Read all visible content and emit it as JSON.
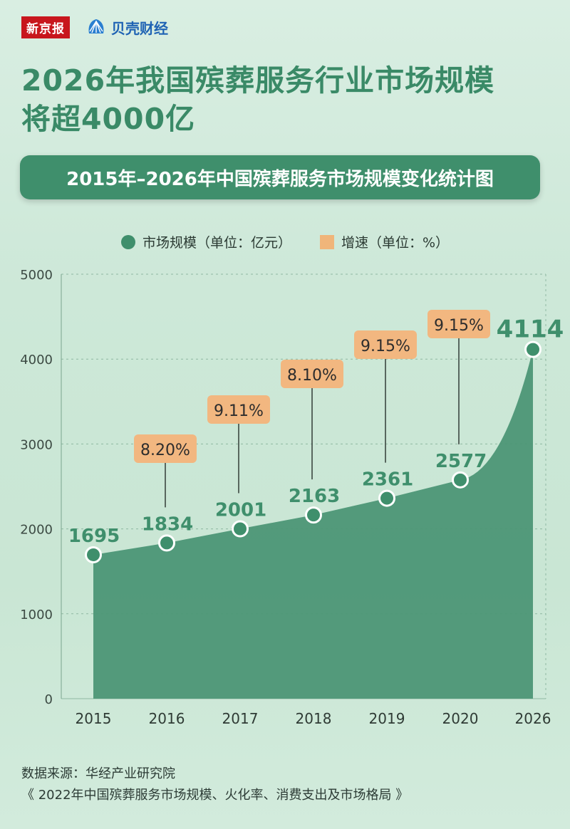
{
  "brand": {
    "newspaper": "新京报",
    "finance": "贝壳财经"
  },
  "title_line1": "2026年我国殡葬服务行业市场规模",
  "title_line2": "将超4000亿",
  "colors": {
    "area": "#4c9676",
    "point": "#3f8f6c",
    "growth_box": "#f2b780",
    "label": "#3f8f6c"
  },
  "chart_data": {
    "type": "area",
    "title": "2015年–2026年中国殡葬服务市场规模变化统计图",
    "categories": [
      "2015",
      "2016",
      "2017",
      "2018",
      "2019",
      "2020",
      "2026"
    ],
    "ylim": [
      0,
      5000
    ],
    "yticks": [
      "0",
      "1000",
      "2000",
      "3000",
      "4000",
      "5000"
    ],
    "grid": true,
    "legend_position": "top",
    "series": [
      {
        "name": "市场规模（单位：亿元）",
        "values": [
          1695,
          1834,
          2001,
          2163,
          2361,
          2577,
          4114
        ],
        "labels": [
          "1695",
          "1834",
          "2001",
          "2163",
          "2361",
          "2577",
          "4114"
        ]
      },
      {
        "name": "增速（单位：%）",
        "values": [
          null,
          8.2,
          9.11,
          8.1,
          9.15,
          9.15,
          null
        ],
        "labels": [
          "",
          "8.20%",
          "9.11%",
          "8.10%",
          "9.15%",
          "9.15%",
          ""
        ]
      }
    ]
  },
  "source_line1": "数据来源：华经产业研究院",
  "source_line2": "《 2022年中国殡葬服务市场规模、火化率、消费支出及市场格局 》"
}
